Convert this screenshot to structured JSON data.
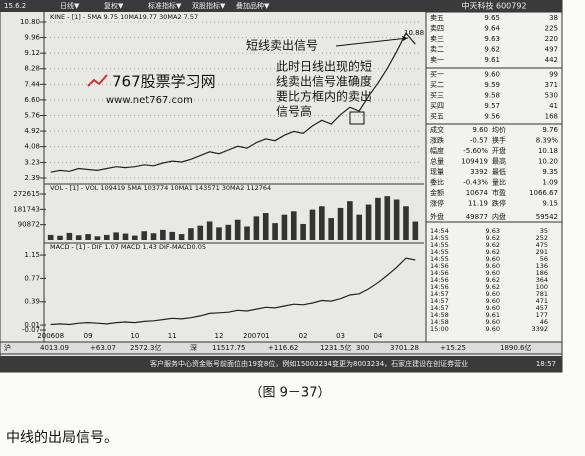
{
  "toolbar": {
    "code": "15.6.2",
    "menus": [
      "日线▼",
      "复权▼",
      "标准指标▼",
      "双股指标▼",
      "叠加品种▼"
    ]
  },
  "stock": "中天科技 600792",
  "chart_data": [
    {
      "type": "line",
      "title": "KINE - [1] - 5MA 9.75 10MA19.77 30MA2 7.57",
      "color": "#222222",
      "grid": true,
      "values": [
        2.7,
        2.8,
        2.75,
        2.9,
        2.85,
        2.8,
        2.9,
        3.0,
        2.95,
        3.0,
        3.1,
        3.05,
        3.2,
        3.3,
        3.25,
        3.4,
        3.6,
        3.8,
        3.7,
        3.9,
        4.1,
        4.0,
        4.3,
        4.5,
        4.4,
        4.7,
        4.9,
        4.8,
        5.2,
        5.5,
        5.3,
        5.8,
        6.2,
        6.0,
        6.8,
        7.5,
        8.3,
        9.2,
        10.2,
        9.6
      ],
      "ylim": [
        2.39,
        10.8
      ],
      "yticks": [
        {
          "value": 10.8,
          "label": "10.80"
        },
        9.96,
        9.12,
        8.28,
        7.44,
        {
          "value": 6.6,
          "label": "6.60"
        },
        5.76,
        4.92,
        4.08,
        3.23,
        2.39
      ]
    },
    {
      "type": "bar",
      "title": "VOL - [1] - VOL 109419 5MA 103774 10MA1 143571 30MA2 112764",
      "color": "#333333",
      "values": [
        30000,
        25000,
        42000,
        28000,
        35000,
        22000,
        30000,
        45000,
        38000,
        26000,
        52000,
        40000,
        60000,
        48000,
        35000,
        70000,
        85000,
        110000,
        75000,
        90000,
        120000,
        80000,
        140000,
        160000,
        100000,
        150000,
        170000,
        95000,
        180000,
        200000,
        130000,
        190000,
        230000,
        150000,
        210000,
        250000,
        260000,
        240000,
        200000,
        109419
      ],
      "ylim": [
        0,
        272615
      ],
      "yticks": [
        272615,
        181743,
        90872
      ]
    },
    {
      "type": "line",
      "title": "MACD - [1] - DIF 1.07 MACD 1.43 DIF-MACD0.05",
      "color": "#222222",
      "categories": [
        "200608",
        null,
        null,
        null,
        "09",
        null,
        null,
        null,
        null,
        "10",
        null,
        null,
        null,
        "11",
        null,
        null,
        null,
        null,
        "12",
        null,
        null,
        null,
        "200701",
        null,
        null,
        null,
        null,
        "02",
        null,
        null,
        null,
        "03",
        null,
        null,
        null,
        "04",
        null,
        null,
        null,
        null
      ],
      "values": [
        0.02,
        0.03,
        0.02,
        0.04,
        0.05,
        0.04,
        0.03,
        0.05,
        0.06,
        0.05,
        0.07,
        0.08,
        0.1,
        0.12,
        0.11,
        0.13,
        0.16,
        0.2,
        0.21,
        0.22,
        0.25,
        0.24,
        0.27,
        0.3,
        0.29,
        0.32,
        0.35,
        0.34,
        0.37,
        0.41,
        0.4,
        0.44,
        0.5,
        0.52,
        0.6,
        0.7,
        0.82,
        0.95,
        1.1,
        1.07
      ],
      "ylim": [
        -0.07,
        1.2
      ],
      "yticks": [
        1.15,
        0.77,
        0.39,
        0.01,
        -0.07
      ]
    }
  ],
  "annotation": {
    "signal": "短线卖出信号",
    "note": [
      "此时日线出现的短",
      "线卖出信号准确度",
      "要比方框内的卖出",
      "信号高"
    ],
    "peak_label": "10.88"
  },
  "watermark": {
    "title": "767股票学习网",
    "url": "www.net767.com"
  },
  "order_book": [
    [
      "卖五",
      "9.65",
      "38"
    ],
    [
      "卖四",
      "9.64",
      "225"
    ],
    [
      "卖三",
      "9.63",
      "220"
    ],
    [
      "卖二",
      "9.62",
      "497"
    ],
    [
      "卖一",
      "9.61",
      "442"
    ],
    [
      "买一",
      "9.60",
      "99"
    ],
    [
      "买二",
      "9.59",
      "371"
    ],
    [
      "买三",
      "9.58",
      "530"
    ],
    [
      "买四",
      "9.57",
      "41"
    ],
    [
      "买五",
      "9.56",
      "168"
    ]
  ],
  "stats": [
    [
      "成交",
      "9.60",
      "均价",
      "9.76"
    ],
    [
      "涨跌",
      "-0.57",
      "换手",
      "8.39%"
    ],
    [
      "幅度",
      "-5.60%",
      "开盘",
      "10.18"
    ],
    [
      "总量",
      "109419",
      "最高",
      "10.20"
    ],
    [
      "现量",
      "3392",
      "最低",
      "9.35"
    ],
    [
      "委比",
      "-0.43%",
      "量比",
      "1.09"
    ],
    [
      "金额",
      "10674",
      "市盈",
      "1066.67"
    ],
    [
      "涨停",
      "11.19",
      "跌停",
      "9.15"
    ],
    [
      "外盘",
      "49877",
      "内盘",
      "59542"
    ]
  ],
  "ticks": [
    [
      "14:54",
      "9.63",
      "35"
    ],
    [
      "14:55",
      "9.62",
      "252"
    ],
    [
      "14:55",
      "9.62",
      "475"
    ],
    [
      "14:55",
      "9.62",
      "291"
    ],
    [
      "14:55",
      "9.60",
      "56"
    ],
    [
      "14:56",
      "9.60",
      "136"
    ],
    [
      "14:56",
      "9.60",
      "186"
    ],
    [
      "14:56",
      "9.62",
      "364"
    ],
    [
      "14:56",
      "9.62",
      "100"
    ],
    [
      "14:57",
      "9.60",
      "781"
    ],
    [
      "14:57",
      "9.60",
      "471"
    ],
    [
      "14:57",
      "9.60",
      "457"
    ],
    [
      "14:58",
      "9.61",
      "177"
    ],
    [
      "14:58",
      "9.60",
      "46"
    ],
    [
      "15:00",
      "9.60",
      "3392"
    ]
  ],
  "status_bar": [
    "沪",
    "4013.09",
    "+63.07",
    "2572.3亿",
    "深",
    "11517.75",
    "+116.62",
    "1231.5亿",
    "300",
    "3701.28",
    "+15.25",
    "1890.6亿"
  ],
  "message": "客户服务中心资金账号前面位由19变8位，例如15003234变更为8003234，石家庄建设在创证券营业",
  "clock": "18:57",
  "caption": "（图 9－37）",
  "body_text": "中线的出局信号。"
}
